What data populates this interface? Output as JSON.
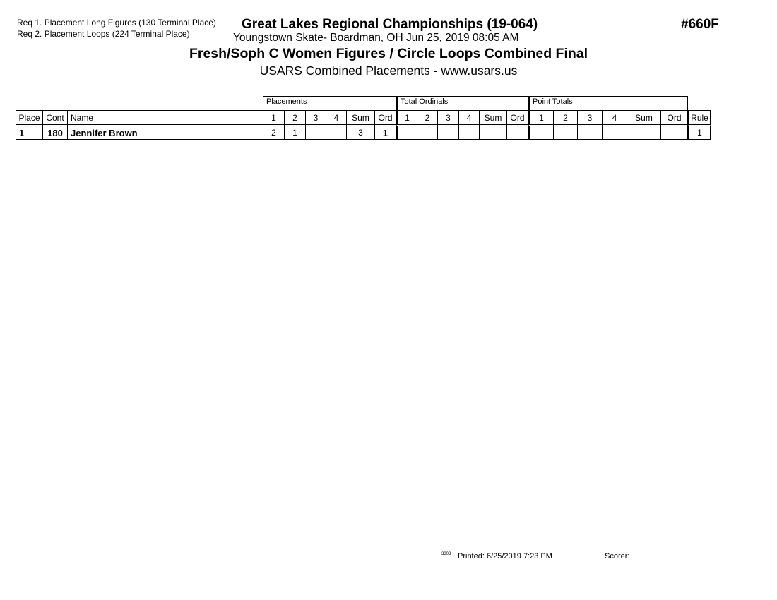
{
  "header": {
    "requirements": [
      "Req  1.  Placement Long Figures (130 Terminal Place)",
      "Req  2.  Placement Loops (224 Terminal Place)"
    ],
    "title": "Great Lakes Regional Championships (19-064)",
    "subtitle": "Youngstown Skate- Boardman, OH  Jun 25, 2019  08:05 AM",
    "event": "Fresh/Soph C Women Figures / Circle Loops Combined Final",
    "usars": "USARS Combined Placements - www.usars.us",
    "code": "#660F"
  },
  "table": {
    "groups": [
      "Placements",
      "Total Ordinals",
      "Point Totals"
    ],
    "columns": [
      "Place",
      "Cont",
      "Name",
      "1",
      "2",
      "3",
      "4",
      "Sum",
      "Ord",
      "1",
      "2",
      "3",
      "4",
      "Sum",
      "Ord",
      "1",
      "2",
      "3",
      "4",
      "Sum",
      "Ord",
      "Rule"
    ],
    "rows": [
      [
        "1",
        "180",
        "Jennifer Brown",
        "2",
        "1",
        "",
        "",
        "3",
        "1",
        "",
        "",
        "",
        "",
        "",
        "",
        "",
        "",
        "",
        "",
        "",
        "",
        "1"
      ]
    ]
  },
  "footer": {
    "code": "3303",
    "printed": "Printed:  6/25/2019  7:23 PM",
    "scorer": "Scorer:"
  }
}
